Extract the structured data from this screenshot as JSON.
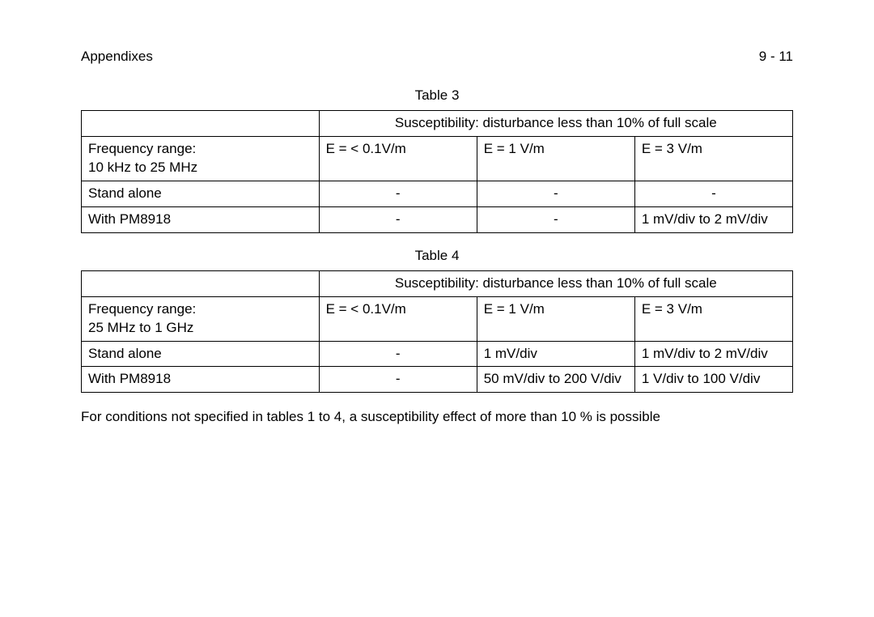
{
  "header": {
    "left": "Appendixes",
    "right": "9 - 11"
  },
  "table3": {
    "caption": "Table 3",
    "spanHeader": "Susceptibility: disturbance less than 10% of full scale",
    "freqLine1": "Frequency range:",
    "freqLine2": "10 kHz to 25 MHz",
    "col1": "E = < 0.1V/m",
    "col2": "E = 1 V/m",
    "col3": "E = 3 V/m",
    "rows": [
      {
        "label": "Stand alone",
        "c1": "-",
        "c2": "-",
        "c3": "-"
      },
      {
        "label": "With PM8918",
        "c1": "-",
        "c2": "-",
        "c3": "1 mV/div to 2 mV/div"
      }
    ]
  },
  "table4": {
    "caption": "Table 4",
    "spanHeader": "Susceptibility: disturbance less than 10% of full scale",
    "freqLine1": "Frequency range:",
    "freqLine2": "25 MHz to 1 GHz",
    "col1": "E = < 0.1V/m",
    "col2": "E = 1 V/m",
    "col3": "E = 3 V/m",
    "rows": [
      {
        "label": "Stand alone",
        "c1": "-",
        "c2": "1 mV/div",
        "c3": "1 mV/div to 2 mV/div"
      },
      {
        "label": "With PM8918",
        "c1": "-",
        "c2": "50 mV/div to 200 V/div",
        "c3": "1 V/div to 100 V/div"
      }
    ]
  },
  "footnote": "For conditions not specified in tables 1 to 4, a susceptibility effect of more than 10 % is possible"
}
